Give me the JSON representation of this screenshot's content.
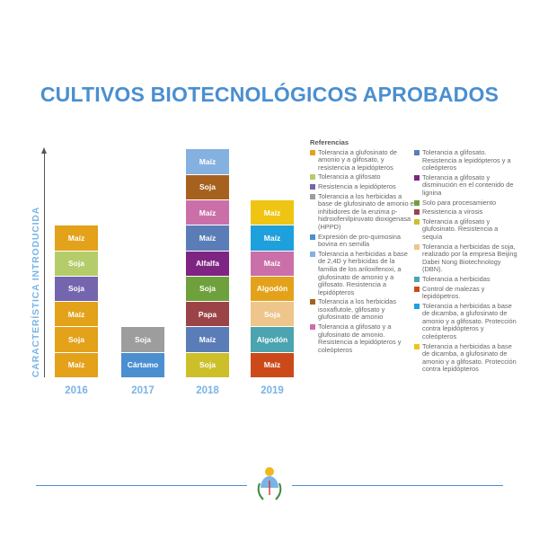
{
  "title": "CULTIVOS BIOTECNOLÓGICOS APROBADOS",
  "y_axis_label": "CARACTERÍSTICA INTRODUCIDA",
  "chart_data": {
    "type": "stacked-blocks",
    "title": "CULTIVOS BIOTECNOLÓGICOS APROBADOS",
    "ylabel": "CARACTERÍSTICA INTRODUCIDA",
    "categories": [
      "2016",
      "2017",
      "2018",
      "2019"
    ],
    "columns": [
      {
        "year": "2016",
        "blocks": [
          {
            "crop": "Maíz",
            "color": "#e3a21a"
          },
          {
            "crop": "Soja",
            "color": "#e3a21a"
          },
          {
            "crop": "Maíz",
            "color": "#e3a21a"
          },
          {
            "crop": "Soja",
            "color": "#7565ae"
          },
          {
            "crop": "Soja",
            "color": "#b5cc6a"
          },
          {
            "crop": "Maíz",
            "color": "#e3a21a"
          }
        ]
      },
      {
        "year": "2017",
        "blocks": [
          {
            "crop": "Cártamo",
            "color": "#4b8fd0"
          },
          {
            "crop": "Soja",
            "color": "#9d9d9d"
          }
        ]
      },
      {
        "year": "2018",
        "blocks": [
          {
            "crop": "Soja",
            "color": "#cdbf2a"
          },
          {
            "crop": "Maíz",
            "color": "#5b7db7"
          },
          {
            "crop": "Papa",
            "color": "#9c4348"
          },
          {
            "crop": "Soja",
            "color": "#6ea13c"
          },
          {
            "crop": "Alfalfa",
            "color": "#7e2583"
          },
          {
            "crop": "Maíz",
            "color": "#5b7db7"
          },
          {
            "crop": "Maíz",
            "color": "#cb6fa9"
          },
          {
            "crop": "Soja",
            "color": "#a7611f"
          },
          {
            "crop": "Maíz",
            "color": "#85b1e0"
          }
        ]
      },
      {
        "year": "2019",
        "blocks": [
          {
            "crop": "Maíz",
            "color": "#cc4a19"
          },
          {
            "crop": "Algodón",
            "color": "#4ca4b0"
          },
          {
            "crop": "Soja",
            "color": "#eec58b"
          },
          {
            "crop": "Algodón",
            "color": "#e3a21a"
          },
          {
            "crop": "Maíz",
            "color": "#cb6fa9"
          },
          {
            "crop": "Maíz",
            "color": "#1ea0dc"
          },
          {
            "crop": "Maíz",
            "color": "#f0c413"
          }
        ]
      }
    ]
  },
  "legend": {
    "title": "Referencias",
    "col1": [
      {
        "color": "#e3a21a",
        "text": "Tolerancia a glufosinato de amonio y a glifosato, y resistencia a lepidópteros"
      },
      {
        "color": "#b5cc6a",
        "text": "Tolerancia a glifosato"
      },
      {
        "color": "#7565ae",
        "text": "Resistencia a lepidópteros"
      },
      {
        "color": "#9d9d9d",
        "text": "Tolerancia a los herbicidas a base de glufosinato de amonio e inhibidores de la enzima p-hidroxifenilpiruvato dioxigenasa (HPPD)"
      },
      {
        "color": "#4b8fd0",
        "text": "Expresión de pro-quimosina bovina en semilla"
      },
      {
        "color": "#85b1e0",
        "text": "Tolerancia a herbicidas a base de 2,4D y herbicidas de la familia de los ariloxifenoxi, a glufosinato de amonio y a glifosato. Resistencia a lepidópteros"
      },
      {
        "color": "#a7611f",
        "text": "Tolerancia a los herbicidas isoxaflutole, glifosato y glufosinato de amonio"
      },
      {
        "color": "#cb6fa9",
        "text": "Tolerancia a glifosato y a glufosinato de amonio. Resistencia a lepidópteros y coleópteros"
      }
    ],
    "col2": [
      {
        "color": "#5b7db7",
        "text": "Tolerancia a glifosato. Resistencia a lepidópteros y a coleópteros"
      },
      {
        "color": "#7e2583",
        "text": "Tolerancia a glifosato y disminución en el contenido de lignina"
      },
      {
        "color": "#6ea13c",
        "text": "Solo para procesamiento"
      },
      {
        "color": "#9c4348",
        "text": "Resistencia a virosis"
      },
      {
        "color": "#cdbf2a",
        "text": "Tolerancia a glifosato y glufosinato. Resistencia a sequía"
      },
      {
        "color": "#eec58b",
        "text": "Tolerancia a herbicidas de soja, realizado por la empresa Beijing Dabei Nong Biotechnology (DBN)."
      },
      {
        "color": "#4ca4b0",
        "text": "Tolerancia a herbicidas"
      },
      {
        "color": "#cc4a19",
        "text": "Control de malezas y lepidópetros."
      },
      {
        "color": "#1ea0dc",
        "text": "Tolerancia a herbicidas a base de dicamba, a glufosinato de amonio y a glifosato. Protección contra lepidópteros y coleópteros"
      },
      {
        "color": "#f0c413",
        "text": "Tolerancia a herbicidas a base de dicamba, a glufosinato de amonio y a glifosato. Protección contra lepidópteros"
      }
    ]
  }
}
